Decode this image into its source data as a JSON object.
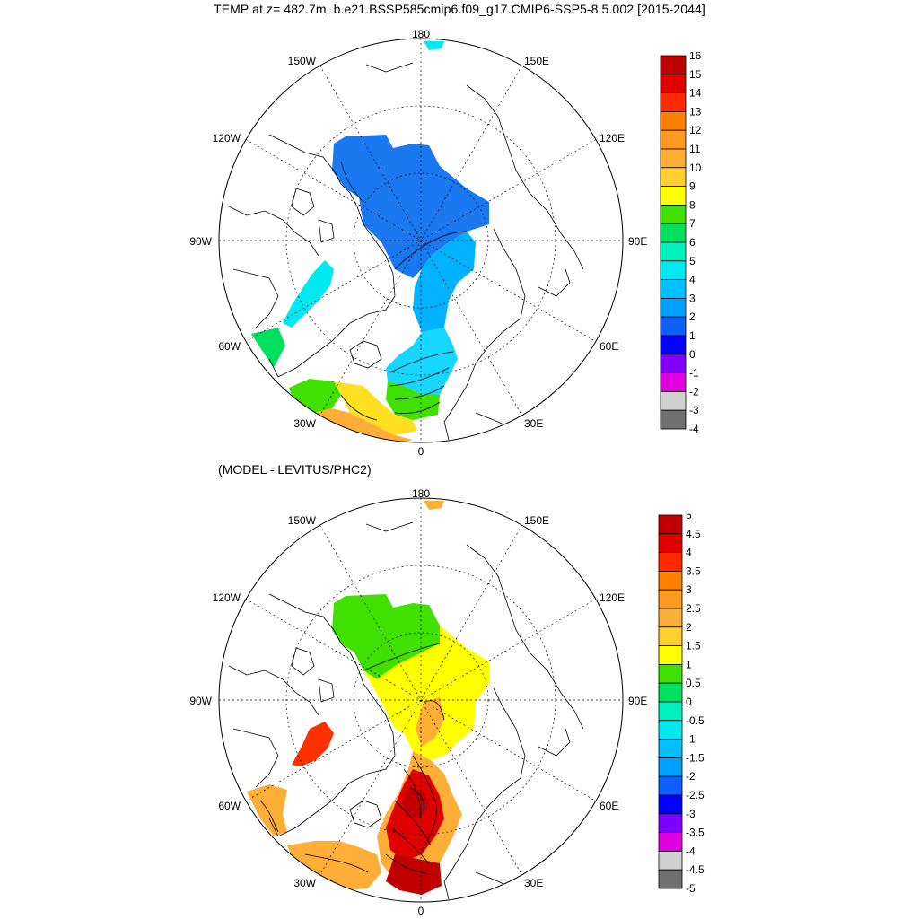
{
  "title": "TEMP at z= 482.7m, b.e21.BSSP585cmip6.f09_g17.CMIP6-SSP5-8.5.002 [2015-2044]",
  "subtitle": "(MODEL - LEVITUS/PHC2)",
  "map_labels": {
    "top": "180",
    "bottom": "0",
    "left": "90W",
    "right": "90E",
    "upper_left_1": "150W",
    "upper_left_2": "120W",
    "upper_right_1": "150E",
    "upper_right_2": "120E",
    "lower_left_1": "60W",
    "lower_left_2": "30W",
    "lower_right_1": "60E",
    "lower_right_2": "30E"
  },
  "colorbar_top": {
    "labels": [
      "16",
      "15",
      "14",
      "13",
      "12",
      "11",
      "10",
      "9",
      "8",
      "7",
      "6",
      "5",
      "4",
      "3",
      "2",
      "1",
      "0",
      "-1",
      "-2",
      "-3",
      "-4"
    ],
    "colors": [
      "#c00000",
      "#e00000",
      "#ff2a00",
      "#ff8000",
      "#ff9a20",
      "#ffae38",
      "#ffd030",
      "#ffff00",
      "#40e000",
      "#00e060",
      "#00f0c0",
      "#00e8f0",
      "#00c0ff",
      "#00a0ff",
      "#1060ff",
      "#0000ff",
      "#8000ff",
      "#e000e0",
      "#d0d0d0",
      "#707070"
    ]
  },
  "colorbar_bottom": {
    "labels": [
      "5",
      "4.5",
      "4",
      "3.5",
      "3",
      "2.5",
      "2",
      "1.5",
      "1",
      "0.5",
      "0",
      "-0.5",
      "-1",
      "-1.5",
      "-2",
      "-2.5",
      "-3",
      "-3.5",
      "-4",
      "-4.5",
      "-5"
    ],
    "colors": [
      "#c00000",
      "#e00000",
      "#ff2a00",
      "#ff8000",
      "#ff9a20",
      "#ffae38",
      "#ffd030",
      "#ffff00",
      "#40e000",
      "#00e060",
      "#00f0c0",
      "#00e8f0",
      "#00c0ff",
      "#00a0ff",
      "#1060ff",
      "#0000ff",
      "#8000ff",
      "#e000e0",
      "#d0d0d0",
      "#707070"
    ]
  },
  "field_colors": {
    "top_basin": "#1a78f0",
    "top_eurasian": "#00b2ff",
    "top_fram": "#17d6ff",
    "top_atlantic_green": "#40e000",
    "top_atlantic_yellow": "#ffe020",
    "top_atlantic_orange": "#ffae38",
    "top_baffin": "#00e8f0",
    "top_labrador": "#00e060",
    "bottom_green": "#40e000",
    "bottom_yellow": "#ffff00",
    "bottom_orange": "#ffae38",
    "bottom_red": "#e00000",
    "bottom_darkred": "#c00000",
    "bottom_redorange": "#ff3000"
  }
}
